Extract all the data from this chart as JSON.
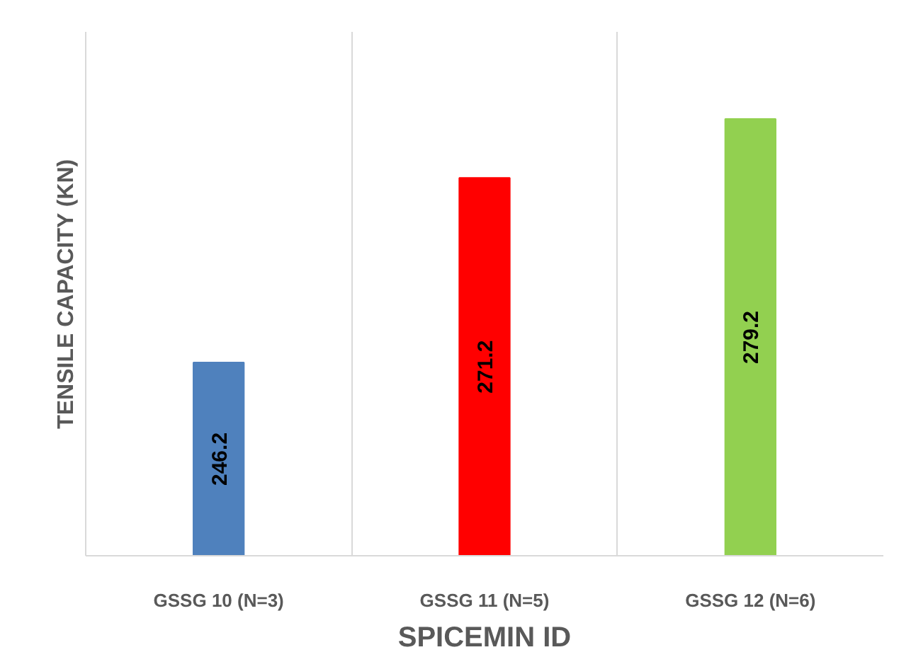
{
  "chart_data": {
    "type": "bar",
    "xlabel": "SPICEMIN ID",
    "ylabel": "TENSILE CAPACITY (KN)",
    "categories": [
      "GSSG 10 (N=3)",
      "GSSG 11 (N=5)",
      "GSSG 12 (N=6)"
    ],
    "values": [
      246.2,
      271.2,
      279.2
    ],
    "colors": [
      "#4f81bd",
      "#ff0000",
      "#92d050"
    ],
    "ylim": [
      220,
      291
    ],
    "tick_labels": "x",
    "grid": "x",
    "data_labels": true
  }
}
